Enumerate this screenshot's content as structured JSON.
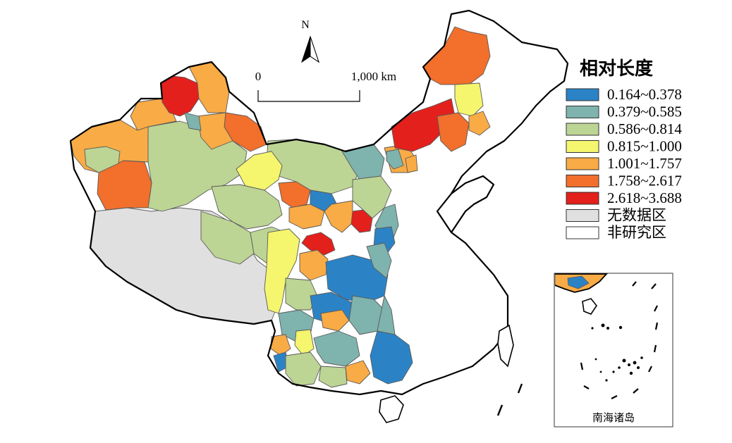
{
  "north_arrow": {
    "label": "N"
  },
  "scale_bar": {
    "start_label": "0",
    "end_label": "1,000 km"
  },
  "legend": {
    "title": "相对长度",
    "items": [
      {
        "label": "0.164~0.378",
        "color": "#2b83c6"
      },
      {
        "label": "0.379~0.585",
        "color": "#7fb3ad"
      },
      {
        "label": "0.586~0.814",
        "color": "#bcd494"
      },
      {
        "label": "0.815~1.000",
        "color": "#f5f56e"
      },
      {
        "label": "1.001~1.757",
        "color": "#f9ab45"
      },
      {
        "label": "1.758~2.617",
        "color": "#f26f2c"
      },
      {
        "label": "2.618~3.688",
        "color": "#e3201c"
      },
      {
        "label": "无数据区",
        "color": "#e0e0e0"
      },
      {
        "label": "非研究区",
        "color": "#ffffff"
      }
    ]
  },
  "inset": {
    "label": "南海诸岛"
  }
}
